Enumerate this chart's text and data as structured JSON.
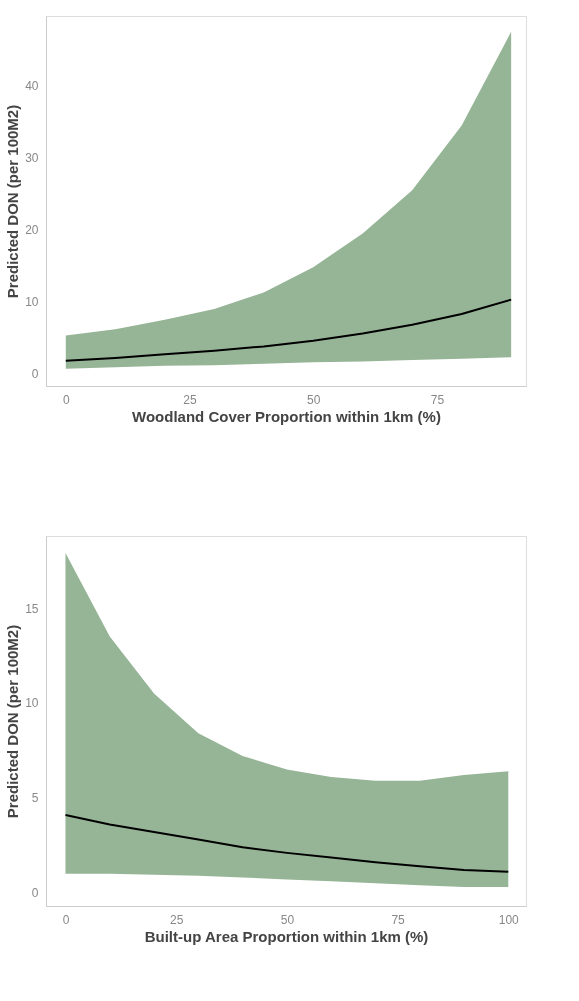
{
  "chart_data": [
    {
      "type": "line",
      "xlabel": "Woodland Cover Proportion within 1km (%)",
      "ylabel": "Predicted DON (per 100M2)",
      "x": [
        0,
        10,
        20,
        30,
        40,
        50,
        60,
        70,
        80,
        90
      ],
      "xlim": [
        -4,
        93
      ],
      "xticks": [
        0,
        25,
        50,
        75
      ],
      "ylim": [
        -1.7,
        49.7
      ],
      "yticks": [
        0,
        10,
        20,
        30,
        40
      ],
      "grid": false,
      "marker": "none",
      "line_style": "solid",
      "series": [
        {
          "color": "#000000",
          "values": [
            1.8,
            2.2,
            2.7,
            3.2,
            3.8,
            4.6,
            5.6,
            6.8,
            8.3,
            10.3
          ],
          "lower": [
            0.7,
            0.9,
            1.1,
            1.2,
            1.4,
            1.6,
            1.7,
            1.9,
            2.1,
            2.3
          ],
          "upper": [
            5.3,
            6.2,
            7.5,
            9.0,
            11.3,
            14.8,
            19.5,
            25.5,
            34.5,
            47.5
          ]
        }
      ]
    },
    {
      "type": "line",
      "xlabel": "Built-up Area Proportion within 1km (%)",
      "ylabel": "Predicted DON (per 100M2)",
      "x": [
        0,
        10,
        20,
        30,
        40,
        50,
        60,
        70,
        80,
        90,
        100
      ],
      "xlim": [
        -4.4,
        104
      ],
      "xticks": [
        0,
        25,
        50,
        75,
        100
      ],
      "ylim": [
        -0.7,
        18.8
      ],
      "yticks": [
        0,
        5,
        10,
        15
      ],
      "grid": false,
      "marker": "none",
      "line_style": "solid",
      "series": [
        {
          "color": "#000000",
          "values": [
            4.1,
            3.6,
            3.2,
            2.8,
            2.4,
            2.1,
            1.85,
            1.6,
            1.4,
            1.2,
            1.1
          ],
          "lower": [
            1.0,
            1.0,
            0.95,
            0.9,
            0.8,
            0.7,
            0.6,
            0.5,
            0.4,
            0.3,
            0.3
          ],
          "upper": [
            17.9,
            13.5,
            10.5,
            8.4,
            7.2,
            6.5,
            6.1,
            5.9,
            5.9,
            6.2,
            6.4
          ]
        }
      ]
    }
  ]
}
